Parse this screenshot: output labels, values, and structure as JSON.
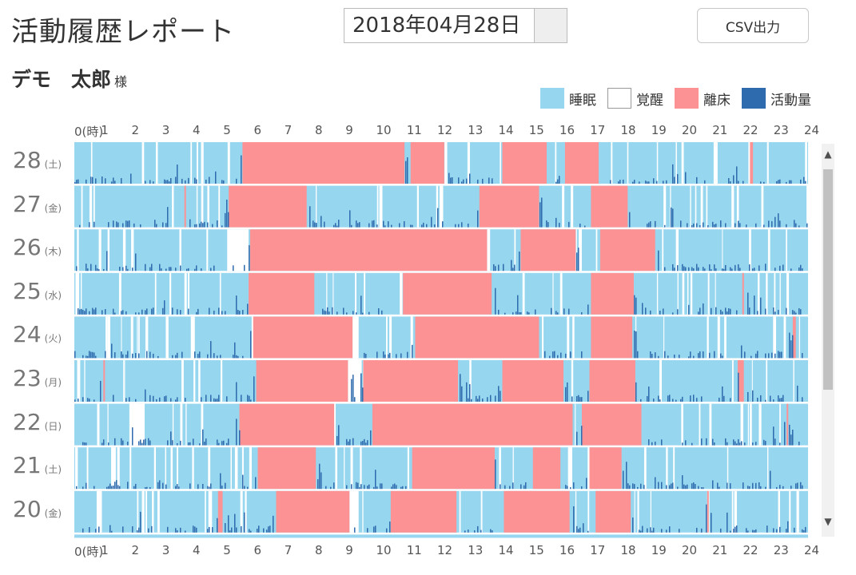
{
  "header": {
    "title": "活動履歴レポート",
    "date_value": "2018年04月28日",
    "csv_label": "CSV出力"
  },
  "user": {
    "name": "デモ　太郎",
    "honorific": "様"
  },
  "legend": [
    {
      "label": "睡眠",
      "color": "#96d6ee"
    },
    {
      "label": "覚醒",
      "color": "#ffffff"
    },
    {
      "label": "離床",
      "color": "#fc9294"
    },
    {
      "label": "活動量",
      "color": "#2e6aae"
    }
  ],
  "axis": {
    "ticks": [
      "0(時)",
      "1",
      "2",
      "3",
      "4",
      "5",
      "6",
      "7",
      "8",
      "9",
      "10",
      "11",
      "12",
      "13",
      "14",
      "15",
      "16",
      "17",
      "18",
      "19",
      "20",
      "21",
      "22",
      "23",
      "24"
    ]
  },
  "chart_data": {
    "type": "heatmap",
    "x_unit": "時",
    "xlim": [
      0,
      24
    ],
    "colors": {
      "sleep": "#96d6ee",
      "awake": "#ffffff",
      "out_of_bed": "#fc9294",
      "activity": "#2e6aae"
    },
    "rows": [
      {
        "day": "28",
        "weekday": "(土)",
        "out_of_bed": [
          [
            5.5,
            10.8
          ],
          [
            11.0,
            12.1
          ],
          [
            14.0,
            15.45
          ],
          [
            16.05,
            17.15
          ],
          [
            22.1,
            22.2
          ]
        ],
        "awake": [
          [
            4.0,
            4.05
          ]
        ]
      },
      {
        "day": "27",
        "weekday": "(金)",
        "out_of_bed": [
          [
            5.05,
            7.6
          ],
          [
            13.25,
            15.2
          ],
          [
            16.9,
            18.1
          ],
          [
            3.6,
            3.65
          ]
        ],
        "awake": []
      },
      {
        "day": "26",
        "weekday": "(木)",
        "out_of_bed": [
          [
            5.75,
            13.5
          ],
          [
            14.6,
            16.4
          ],
          [
            17.2,
            19.0
          ]
        ],
        "awake": [
          [
            5.0,
            5.7
          ],
          [
            13.5,
            13.6
          ],
          [
            16.5,
            16.6
          ]
        ]
      },
      {
        "day": "25",
        "weekday": "(水)",
        "out_of_bed": [
          [
            5.7,
            7.85
          ],
          [
            10.75,
            13.65
          ],
          [
            16.9,
            18.3
          ],
          [
            21.85,
            21.9
          ]
        ],
        "awake": []
      },
      {
        "day": "24",
        "weekday": "(火)",
        "out_of_bed": [
          [
            5.85,
            9.1
          ],
          [
            11.15,
            15.2
          ],
          [
            16.9,
            18.25
          ],
          [
            23.5,
            23.6
          ]
        ],
        "awake": [
          [
            5.8,
            5.9
          ],
          [
            9.1,
            9.3
          ]
        ]
      },
      {
        "day": "23",
        "weekday": "(月)",
        "out_of_bed": [
          [
            5.95,
            8.95
          ],
          [
            9.45,
            12.55
          ],
          [
            14.0,
            16.0
          ],
          [
            16.85,
            18.35
          ],
          [
            21.7,
            21.9
          ],
          [
            0.95,
            1.0
          ]
        ],
        "awake": [
          [
            8.95,
            9.4
          ]
        ]
      },
      {
        "day": "22",
        "weekday": "(日)",
        "out_of_bed": [
          [
            5.4,
            8.5
          ],
          [
            9.75,
            16.3
          ],
          [
            16.6,
            18.55
          ],
          [
            23.3,
            23.35
          ]
        ],
        "awake": [
          [
            1.8,
            2.3
          ],
          [
            8.45,
            8.55
          ]
        ]
      },
      {
        "day": "21",
        "weekday": "(土)",
        "out_of_bed": [
          [
            6.0,
            7.9
          ],
          [
            11.05,
            13.75
          ],
          [
            15.0,
            15.9
          ],
          [
            16.85,
            17.9
          ]
        ],
        "awake": []
      },
      {
        "day": "20",
        "weekday": "(金)",
        "out_of_bed": [
          [
            4.7,
            4.85
          ],
          [
            6.6,
            9.0
          ],
          [
            10.35,
            12.5
          ],
          [
            14.05,
            16.2
          ],
          [
            17.05,
            18.2
          ],
          [
            20.7,
            20.75
          ]
        ],
        "awake": [
          [
            9.0,
            9.3
          ]
        ]
      }
    ]
  },
  "scrollbar": {
    "up_glyph": "▲",
    "down_glyph": "▼"
  }
}
